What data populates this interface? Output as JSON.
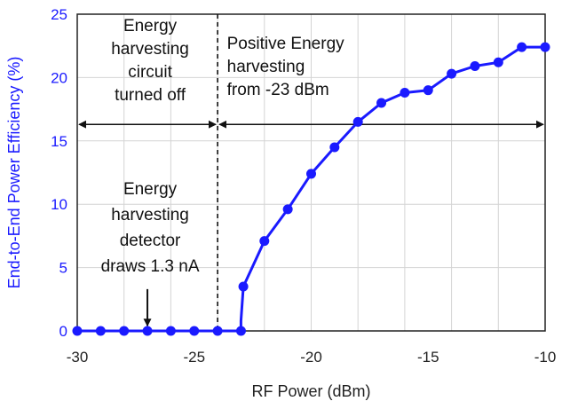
{
  "chart_data": {
    "type": "line",
    "title": "",
    "xlabel": "RF Power (dBm)",
    "ylabel": "End-to-End Power Efficiency (%)",
    "xlim": [
      -30,
      -10
    ],
    "ylim": [
      0,
      25
    ],
    "xticks": [
      -30,
      -25,
      -20,
      -15,
      -10
    ],
    "yticks": [
      0,
      5,
      10,
      15,
      20,
      25
    ],
    "grid": true,
    "legend": "none",
    "series_color": "#1a1aff",
    "axis_label_color": "#1a1aff",
    "series": [
      {
        "x": [
          -30,
          -29,
          -28,
          -27,
          -26,
          -25,
          -24,
          -23,
          -23,
          -22.9,
          -22,
          -21,
          -20,
          -19,
          -18,
          -17,
          -16,
          -15,
          -14,
          -13,
          -12,
          -11,
          -10
        ],
        "y": [
          0,
          0,
          0,
          0,
          0,
          0,
          0,
          0,
          0.8,
          3.5,
          7.1,
          9.6,
          12.4,
          14.5,
          16.5,
          18.0,
          18.8,
          19.0,
          20.3,
          20.9,
          21.2,
          22.4,
          22.4
        ]
      }
    ],
    "marker_x": [
      -30,
      -29,
      -28,
      -27,
      -26,
      -25,
      -24,
      -23,
      -22.9,
      -22,
      -21,
      -20,
      -19,
      -18,
      -17,
      -16,
      -15,
      -14,
      -13,
      -12,
      -11,
      -10
    ],
    "marker_y": [
      0,
      0,
      0,
      0,
      0,
      0,
      0,
      0,
      3.5,
      7.1,
      9.6,
      12.4,
      14.5,
      16.5,
      18.0,
      18.8,
      19.0,
      20.3,
      20.9,
      21.2,
      22.4,
      22.4
    ],
    "divider_x": -24,
    "annotations": {
      "off_region": {
        "lines": [
          "Energy",
          "harvesting",
          "circuit",
          "turned off"
        ],
        "arrow_from_x": -30,
        "arrow_to_x": -24,
        "arrow_y": 16.3
      },
      "positive_region": {
        "lines": [
          "Positive Energy",
          "harvesting",
          "from -23 dBm"
        ],
        "arrow_from_x": -24,
        "arrow_to_x": -10,
        "arrow_y": 16.3
      },
      "detector": {
        "lines": [
          "Energy",
          "harvesting",
          "detector",
          "draws 1.3 nA"
        ],
        "arrow_x": -27,
        "arrow_from_y": 3.3,
        "arrow_to_y": 0.4
      }
    }
  }
}
